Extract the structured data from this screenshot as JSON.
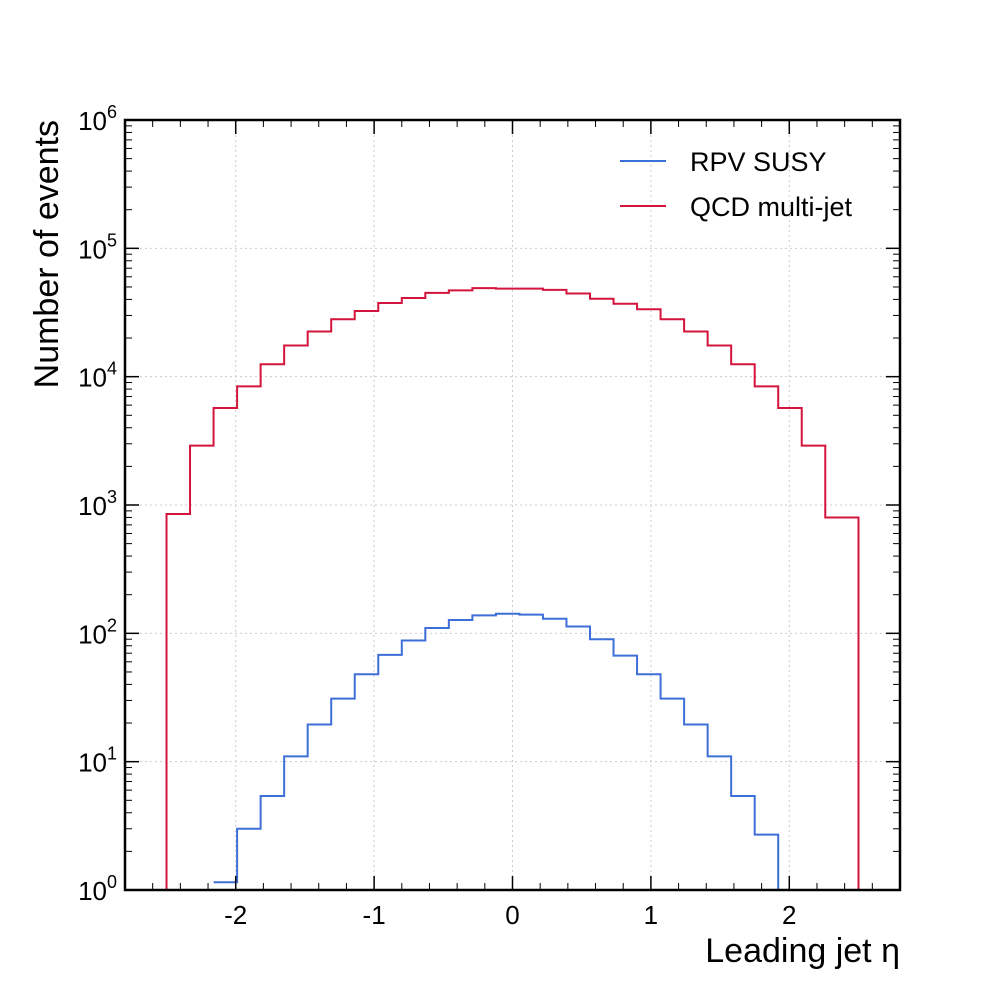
{
  "chart_data": {
    "type": "histogram-step",
    "title": "",
    "xlabel": "Leading jet η",
    "ylabel": "Number of events",
    "xlim": [
      -2.8,
      2.8
    ],
    "ylim": [
      1,
      1000000
    ],
    "yscale": "log",
    "grid": true,
    "legend_position": "top-right",
    "x_ticks": [
      -2,
      -1,
      0,
      1,
      2
    ],
    "x_tick_labels": [
      "-2",
      "-1",
      "0",
      "1",
      "2"
    ],
    "y_ticks": [
      1,
      10,
      100,
      1000,
      10000,
      100000,
      1000000
    ],
    "y_tick_labels": [
      {
        "base": "10",
        "exp": "0"
      },
      {
        "base": "10",
        "exp": "1"
      },
      {
        "base": "10",
        "exp": "2"
      },
      {
        "base": "10",
        "exp": "3"
      },
      {
        "base": "10",
        "exp": "4"
      },
      {
        "base": "10",
        "exp": "5"
      },
      {
        "base": "10",
        "exp": "6"
      }
    ],
    "bin_edges": [
      -2.5,
      -2.33,
      -2.16,
      -1.99,
      -1.82,
      -1.65,
      -1.48,
      -1.31,
      -1.14,
      -0.97,
      -0.8,
      -0.63,
      -0.46,
      -0.29,
      -0.12,
      0.05,
      0.22,
      0.39,
      0.56,
      0.73,
      0.9,
      1.07,
      1.24,
      1.41,
      1.58,
      1.75,
      1.92,
      2.09,
      2.26,
      2.43,
      2.5
    ],
    "series": [
      {
        "name": "RPV SUSY",
        "color": "#3e6fd8",
        "values": [
          0,
          0,
          1.15,
          3.0,
          5.4,
          11,
          19.5,
          31,
          48,
          68,
          88,
          110,
          127,
          138,
          142,
          140,
          130,
          113,
          90,
          67,
          48,
          31,
          19.5,
          11,
          5.4,
          2.7,
          0.8,
          0,
          0,
          0
        ]
      },
      {
        "name": "QCD multi-jet",
        "color": "#d4143c",
        "values": [
          850,
          2900,
          5700,
          8400,
          12500,
          17500,
          22500,
          28000,
          32500,
          37500,
          41000,
          45000,
          47000,
          49000,
          48500,
          48500,
          47500,
          44500,
          40500,
          37000,
          33500,
          28000,
          22500,
          17500,
          12500,
          8400,
          5700,
          2900,
          800,
          800
        ]
      }
    ]
  }
}
